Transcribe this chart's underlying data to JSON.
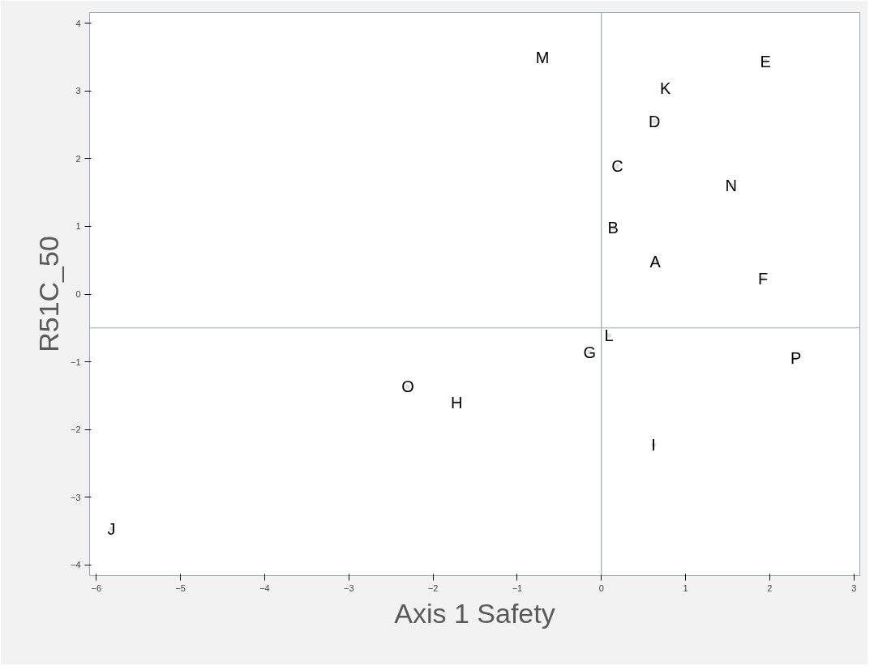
{
  "chart_data": {
    "type": "scatter",
    "xlabel": "Axis 1 Safety",
    "ylabel": "R51C_50",
    "x": [
      -0.7,
      1.95,
      0.76,
      0.63,
      0.19,
      1.54,
      0.14,
      0.64,
      1.92,
      0.09,
      -0.14,
      2.31,
      -2.3,
      -1.72,
      0.62,
      -5.82
    ],
    "values": [
      3.49,
      3.44,
      3.04,
      2.55,
      1.89,
      1.61,
      0.98,
      0.48,
      0.23,
      -0.61,
      -0.86,
      -0.94,
      -1.37,
      -1.6,
      -2.23,
      -3.47
    ],
    "value_labels": [
      "M",
      "E",
      "K",
      "D",
      "C",
      "N",
      "B",
      "A",
      "F",
      "L",
      "G",
      "P",
      "O",
      "H",
      "I",
      "J"
    ],
    "color": "#000000",
    "marker": "none",
    "xlim": [
      -6.08,
      3.07
    ],
    "xticks": [
      -6,
      -5,
      -4,
      -3,
      -2,
      -1,
      0,
      1,
      2,
      3
    ],
    "ylim": [
      -4.16,
      4.16
    ],
    "yticks": [
      -4,
      -3,
      -2,
      -1,
      0,
      1,
      2,
      3,
      4
    ],
    "ref_lines": [
      {
        "axis": "x",
        "value": 0,
        "color": "#9aa6b6"
      },
      {
        "axis": "y",
        "value": -0.5,
        "color": "#9aa6b6"
      }
    ],
    "grid": false
  }
}
